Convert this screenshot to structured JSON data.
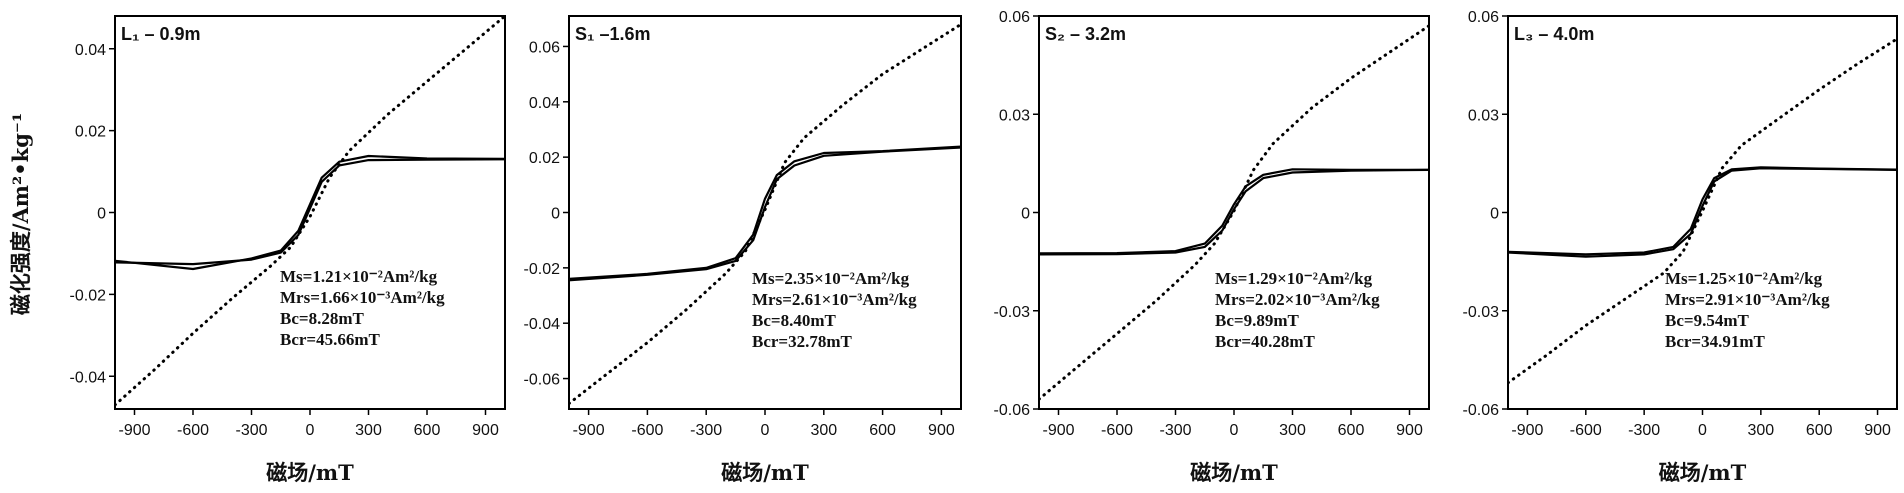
{
  "figure": {
    "ylabel": "磁化强度/Am²•kg⁻¹",
    "xlabel": "磁场/mT"
  },
  "chart_data": [
    {
      "type": "line",
      "title": "L₁ – 0.9m",
      "xlabel": "磁场/mT",
      "ylabel": "磁化强度/Am²•kg⁻¹",
      "xlim": [
        -1000,
        1000
      ],
      "ylim": [
        -0.048,
        0.048
      ],
      "xticks": [
        -900,
        -600,
        -300,
        0,
        300,
        600,
        900
      ],
      "yticks": [
        -0.04,
        -0.02,
        0,
        0.02,
        0.04
      ],
      "ytick_labels": [
        "-0.04",
        "-0.02",
        "0",
        "0.02",
        "0.04"
      ],
      "series": [
        {
          "style": "dotted",
          "x": [
            -1000,
            -800,
            -600,
            -400,
            -200,
            -100,
            0,
            100,
            200,
            400,
            600,
            800,
            1000
          ],
          "y": [
            -0.047,
            -0.0385,
            -0.0295,
            -0.021,
            -0.013,
            -0.0085,
            -0.001,
            0.0085,
            0.015,
            0.024,
            0.032,
            0.04,
            0.048
          ]
        },
        {
          "style": "solid",
          "x": [
            -1000,
            -600,
            -300,
            -150,
            -60,
            0,
            60,
            150,
            300,
            600,
            1000
          ],
          "y": [
            -0.0122,
            -0.0126,
            -0.0115,
            -0.0098,
            -0.0055,
            0.001,
            0.0075,
            0.0115,
            0.0128,
            0.0129,
            0.013
          ]
        },
        {
          "style": "solid",
          "x": [
            -1000,
            -600,
            -300,
            -150,
            -60,
            0,
            60,
            150,
            300,
            600,
            1000
          ],
          "y": [
            -0.0118,
            -0.0138,
            -0.0112,
            -0.0093,
            -0.0045,
            0.002,
            0.0085,
            0.0124,
            0.0138,
            0.0132,
            0.0131
          ]
        }
      ],
      "annotations": {
        "ms": "Ms=1.21×10⁻²Am²/kg",
        "mrs": "Mrs=1.66×10⁻³Am²/kg",
        "bc": "Bc=8.28mT",
        "bcr": "Bcr=45.66mT"
      }
    },
    {
      "type": "line",
      "title": "S₁ –1.6m",
      "xlabel": "磁场/mT",
      "ylabel": "",
      "xlim": [
        -1000,
        1000
      ],
      "ylim": [
        -0.071,
        0.071
      ],
      "xticks": [
        -900,
        -600,
        -300,
        0,
        300,
        600,
        900
      ],
      "yticks": [
        -0.06,
        -0.04,
        -0.02,
        0,
        0.02,
        0.04,
        0.06
      ],
      "ytick_labels": [
        "-0.06",
        "-0.04",
        "-0.02",
        "0",
        "0.02",
        "0.04",
        "0.06"
      ],
      "series": [
        {
          "style": "dotted",
          "x": [
            -1000,
            -800,
            -600,
            -400,
            -200,
            -100,
            0,
            100,
            200,
            400,
            600,
            800,
            1000
          ],
          "y": [
            -0.069,
            -0.058,
            -0.047,
            -0.035,
            -0.022,
            -0.014,
            0.001,
            0.018,
            0.027,
            0.039,
            0.05,
            0.059,
            0.068
          ]
        },
        {
          "style": "solid",
          "x": [
            -1000,
            -600,
            -300,
            -150,
            -60,
            0,
            60,
            150,
            300,
            600,
            1000
          ],
          "y": [
            -0.0245,
            -0.0225,
            -0.0205,
            -0.0175,
            -0.01,
            0.002,
            0.012,
            0.017,
            0.0205,
            0.022,
            0.0235
          ]
        },
        {
          "style": "solid",
          "x": [
            -1000,
            -600,
            -300,
            -150,
            -60,
            0,
            60,
            150,
            300,
            600,
            1000
          ],
          "y": [
            -0.024,
            -0.0222,
            -0.02,
            -0.0165,
            -0.008,
            0.005,
            0.0135,
            0.0185,
            0.0215,
            0.0222,
            0.0238
          ]
        }
      ],
      "annotations": {
        "ms": "Ms=2.35×10⁻²Am²/kg",
        "mrs": "Mrs=2.61×10⁻³Am²/kg",
        "bc": "Bc=8.40mT",
        "bcr": "Bcr=32.78mT"
      }
    },
    {
      "type": "line",
      "title": "S₂ – 3.2m",
      "xlabel": "磁场/mT",
      "ylabel": "",
      "xlim": [
        -1000,
        1000
      ],
      "ylim": [
        -0.06,
        0.06
      ],
      "xticks": [
        -900,
        -600,
        -300,
        0,
        300,
        600,
        900
      ],
      "yticks": [
        -0.06,
        -0.03,
        0,
        0.03,
        0.06
      ],
      "ytick_labels": [
        "-0.06",
        "-0.03",
        "0",
        "0.03",
        "0.06"
      ],
      "series": [
        {
          "style": "dotted",
          "x": [
            -1000,
            -800,
            -600,
            -400,
            -200,
            -100,
            0,
            100,
            200,
            400,
            600,
            800,
            1000
          ],
          "y": [
            -0.057,
            -0.047,
            -0.037,
            -0.027,
            -0.016,
            -0.0095,
            0.0005,
            0.013,
            0.021,
            0.032,
            0.041,
            0.049,
            0.057
          ]
        },
        {
          "style": "solid",
          "x": [
            -1000,
            -600,
            -300,
            -150,
            -60,
            0,
            60,
            150,
            300,
            600,
            1000
          ],
          "y": [
            -0.0128,
            -0.0127,
            -0.0122,
            -0.0105,
            -0.0055,
            0.001,
            0.0065,
            0.0105,
            0.0122,
            0.0128,
            0.013
          ]
        },
        {
          "style": "solid",
          "x": [
            -1000,
            -600,
            -300,
            -150,
            -60,
            0,
            60,
            150,
            300,
            600,
            1000
          ],
          "y": [
            -0.0125,
            -0.0124,
            -0.0118,
            -0.0095,
            -0.004,
            0.0025,
            0.008,
            0.0115,
            0.0132,
            0.013,
            0.013
          ]
        }
      ],
      "annotations": {
        "ms": "Ms=1.29×10⁻²Am²/kg",
        "mrs": "Mrs=2.02×10⁻³Am²/kg",
        "bc": "Bc=9.89mT",
        "bcr": "Bcr=40.28mT"
      }
    },
    {
      "type": "line",
      "title": "L₃ – 4.0m",
      "xlabel": "磁场/mT",
      "ylabel": "",
      "xlim": [
        -1000,
        1000
      ],
      "ylim": [
        -0.06,
        0.06
      ],
      "xticks": [
        -900,
        -600,
        -300,
        0,
        300,
        600,
        900
      ],
      "yticks": [
        -0.06,
        -0.03,
        0,
        0.03,
        0.06
      ],
      "ytick_labels": [
        "-0.06",
        "-0.03",
        "0",
        "0.03",
        "0.06"
      ],
      "series": [
        {
          "style": "dotted",
          "x": [
            -1000,
            -800,
            -600,
            -400,
            -200,
            -100,
            0,
            100,
            200,
            400,
            600,
            800,
            1000
          ],
          "y": [
            -0.052,
            -0.0435,
            -0.0345,
            -0.0265,
            -0.0185,
            -0.012,
            0.0005,
            0.0135,
            0.0205,
            0.029,
            0.0375,
            0.0455,
            0.053
          ]
        },
        {
          "style": "solid",
          "x": [
            -1000,
            -600,
            -300,
            -150,
            -60,
            0,
            60,
            150,
            300,
            600,
            1000
          ],
          "y": [
            -0.0122,
            -0.0135,
            -0.0128,
            -0.0112,
            -0.0065,
            0.002,
            0.0095,
            0.0128,
            0.0135,
            0.0133,
            0.013
          ]
        },
        {
          "style": "solid",
          "x": [
            -1000,
            -600,
            -300,
            -150,
            -60,
            0,
            60,
            150,
            300,
            600,
            1000
          ],
          "y": [
            -0.012,
            -0.0128,
            -0.0122,
            -0.0105,
            -0.005,
            0.004,
            0.0105,
            0.0132,
            0.0138,
            0.0134,
            0.0131
          ]
        }
      ],
      "annotations": {
        "ms": "Ms=1.25×10⁻²Am²/kg",
        "mrs": "Mrs=2.91×10⁻³Am²/kg",
        "bc": "Bc=9.54mT",
        "bcr": "Bcr=34.91mT"
      }
    }
  ]
}
